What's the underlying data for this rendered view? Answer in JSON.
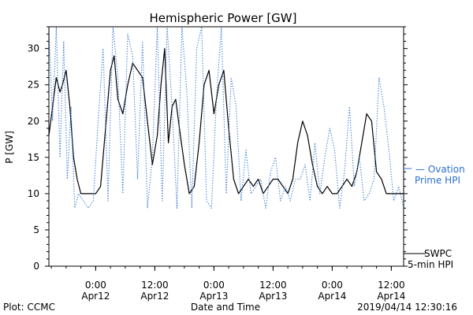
{
  "chart_data": {
    "type": "line",
    "title": "Hemispheric Power [GW]",
    "ylabel": "P [GW]",
    "xlabel": "Date and Time",
    "ylim": [
      0,
      33
    ],
    "xlim": [
      "2019-04-11 14:30",
      "2019-04-14 14:30"
    ],
    "yticks": [
      0,
      5,
      10,
      15,
      20,
      25,
      30
    ],
    "xticks": [
      {
        "at": "2019-04-12 00:00",
        "time": "0:00",
        "date": "Apr12"
      },
      {
        "at": "2019-04-12 12:00",
        "time": "12:00",
        "date": "Apr12"
      },
      {
        "at": "2019-04-13 00:00",
        "time": "0:00",
        "date": "Apr13"
      },
      {
        "at": "2019-04-13 12:00",
        "time": "12:00",
        "date": "Apr13"
      },
      {
        "at": "2019-04-14 00:00",
        "time": "0:00",
        "date": "Apr14"
      },
      {
        "at": "2019-04-14 12:00",
        "time": "12:00",
        "date": "Apr14"
      }
    ],
    "series": [
      {
        "name": "SWPC 5-min HPI",
        "style": "solid",
        "color": "#000000",
        "x": [
          "2019-04-11 14:30",
          "2019-04-11 15:15",
          "2019-04-11 16:00",
          "2019-04-11 16:45",
          "2019-04-11 17:15",
          "2019-04-11 18:00",
          "2019-04-11 18:45",
          "2019-04-11 19:30",
          "2019-04-11 20:15",
          "2019-04-11 21:00",
          "2019-04-11 21:45",
          "2019-04-11 22:30",
          "2019-04-11 23:15",
          "2019-04-12 00:00",
          "2019-04-12 01:00",
          "2019-04-12 02:00",
          "2019-04-12 03:00",
          "2019-04-12 03:45",
          "2019-04-12 04:30",
          "2019-04-12 05:30",
          "2019-04-12 06:30",
          "2019-04-12 07:30",
          "2019-04-12 08:30",
          "2019-04-12 09:30",
          "2019-04-12 10:30",
          "2019-04-12 11:30",
          "2019-04-12 12:30",
          "2019-04-12 13:15",
          "2019-04-12 14:00",
          "2019-04-12 14:45",
          "2019-04-12 15:30",
          "2019-04-12 16:15",
          "2019-04-12 17:00",
          "2019-04-12 18:00",
          "2019-04-12 19:00",
          "2019-04-12 20:00",
          "2019-04-12 21:00",
          "2019-04-12 22:00",
          "2019-04-12 23:00",
          "2019-04-13 00:00",
          "2019-04-13 01:00",
          "2019-04-13 02:00",
          "2019-04-13 03:00",
          "2019-04-13 04:00",
          "2019-04-13 05:00",
          "2019-04-13 06:00",
          "2019-04-13 07:00",
          "2019-04-13 08:00",
          "2019-04-13 09:00",
          "2019-04-13 10:00",
          "2019-04-13 11:00",
          "2019-04-13 12:00",
          "2019-04-13 13:00",
          "2019-04-13 14:00",
          "2019-04-13 15:00",
          "2019-04-13 16:00",
          "2019-04-13 17:00",
          "2019-04-13 18:00",
          "2019-04-13 19:00",
          "2019-04-13 20:00",
          "2019-04-13 21:00",
          "2019-04-13 22:00",
          "2019-04-13 23:00",
          "2019-04-14 00:00",
          "2019-04-14 01:00",
          "2019-04-14 02:00",
          "2019-04-14 03:00",
          "2019-04-14 04:00",
          "2019-04-14 05:00",
          "2019-04-14 06:00",
          "2019-04-14 07:00",
          "2019-04-14 08:00",
          "2019-04-14 09:00",
          "2019-04-14 10:00",
          "2019-04-14 11:00",
          "2019-04-14 12:00",
          "2019-04-14 13:00",
          "2019-04-14 14:00",
          "2019-04-14 14:30"
        ],
        "y": [
          18,
          22,
          26,
          24,
          25,
          27,
          22,
          15,
          12,
          10,
          10,
          10,
          10,
          10,
          11,
          19,
          27,
          29,
          23,
          21,
          25,
          28,
          27,
          26,
          20,
          14,
          18,
          25,
          30,
          17,
          22,
          23,
          19,
          14,
          10,
          11,
          17,
          25,
          27,
          21,
          25,
          27,
          19,
          12,
          10,
          11,
          12,
          11,
          12,
          10,
          11,
          12,
          12,
          11,
          10,
          12,
          17,
          20,
          18,
          14,
          11,
          10,
          11,
          10,
          10,
          11,
          12,
          11,
          13,
          17,
          21,
          20,
          13,
          12,
          10,
          10,
          10,
          10,
          10
        ]
      },
      {
        "name": "Ovation Prime HPI",
        "style": "dotted",
        "color": "#2a6fd1",
        "x": [
          "2019-04-11 14:30",
          "2019-04-11 15:15",
          "2019-04-11 16:00",
          "2019-04-11 16:45",
          "2019-04-11 17:30",
          "2019-04-11 18:15",
          "2019-04-11 19:00",
          "2019-04-11 19:45",
          "2019-04-11 20:30",
          "2019-04-11 21:30",
          "2019-04-11 22:30",
          "2019-04-11 23:30",
          "2019-04-12 00:30",
          "2019-04-12 01:30",
          "2019-04-12 02:30",
          "2019-04-12 03:30",
          "2019-04-12 04:30",
          "2019-04-12 05:30",
          "2019-04-12 06:30",
          "2019-04-12 07:30",
          "2019-04-12 08:30",
          "2019-04-12 09:30",
          "2019-04-12 10:30",
          "2019-04-12 11:30",
          "2019-04-12 12:30",
          "2019-04-12 13:30",
          "2019-04-12 14:30",
          "2019-04-12 15:30",
          "2019-04-12 16:30",
          "2019-04-12 17:30",
          "2019-04-12 18:30",
          "2019-04-12 19:30",
          "2019-04-12 20:30",
          "2019-04-12 21:30",
          "2019-04-12 22:30",
          "2019-04-12 23:30",
          "2019-04-13 00:30",
          "2019-04-13 01:30",
          "2019-04-13 02:30",
          "2019-04-13 03:30",
          "2019-04-13 04:30",
          "2019-04-13 05:30",
          "2019-04-13 06:30",
          "2019-04-13 07:30",
          "2019-04-13 08:30",
          "2019-04-13 09:30",
          "2019-04-13 10:30",
          "2019-04-13 11:30",
          "2019-04-13 12:30",
          "2019-04-13 13:30",
          "2019-04-13 14:30",
          "2019-04-13 15:30",
          "2019-04-13 16:30",
          "2019-04-13 17:30",
          "2019-04-13 18:30",
          "2019-04-13 19:30",
          "2019-04-13 20:30",
          "2019-04-13 21:30",
          "2019-04-13 22:30",
          "2019-04-13 23:30",
          "2019-04-14 00:30",
          "2019-04-14 01:30",
          "2019-04-14 02:30",
          "2019-04-14 03:30",
          "2019-04-14 04:30",
          "2019-04-14 05:30",
          "2019-04-14 06:30",
          "2019-04-14 07:30",
          "2019-04-14 08:30",
          "2019-04-14 09:30",
          "2019-04-14 10:30",
          "2019-04-14 11:30",
          "2019-04-14 12:30",
          "2019-04-14 13:30",
          "2019-04-14 14:30"
        ],
        "y": [
          33,
          20,
          33,
          15,
          31,
          12,
          22,
          8,
          10,
          9,
          8,
          9,
          20,
          30,
          9,
          33,
          26,
          10,
          32,
          29,
          12,
          31,
          8,
          15,
          33,
          9,
          33,
          22,
          8,
          33,
          24,
          8,
          30,
          33,
          9,
          8,
          23,
          33,
          10,
          26,
          22,
          9,
          16,
          10,
          11,
          12,
          8,
          13,
          15,
          9,
          11,
          9,
          12,
          12,
          14,
          9,
          17,
          10,
          15,
          19,
          16,
          8,
          13,
          22,
          11,
          15,
          9,
          10,
          12,
          26,
          22,
          16,
          9,
          11,
          8
        ]
      }
    ]
  },
  "legend": {
    "ovation_line1": "— Ovation",
    "ovation_line2": "Prime HPI",
    "swpc_line1": "SWPC",
    "swpc_line2": "5-min HPI"
  },
  "footer": {
    "credit": "Plot: CCMC",
    "xlabel": "Date and Time",
    "timestamp": "2019/04/14 12:30:16"
  },
  "colors": {
    "ovation": "#2a6fd1",
    "swpc": "#000000",
    "axis": "#000000"
  }
}
